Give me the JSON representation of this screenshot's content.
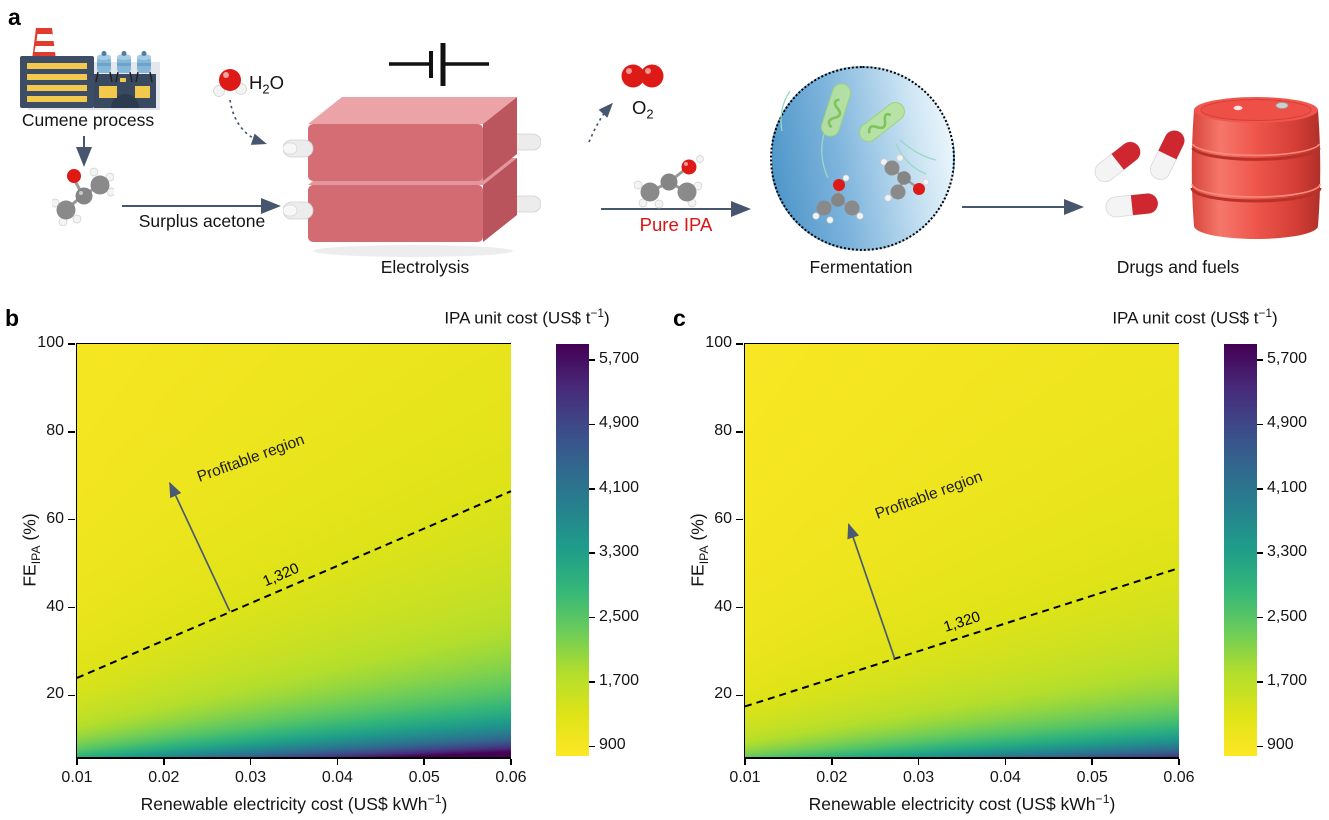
{
  "panel_a": {
    "label": "a",
    "cumene_caption": "Cumene process",
    "surplus_arrow_label": "Surplus acetone",
    "water_formula": {
      "p1": "H",
      "sub": "2",
      "p2": "O"
    },
    "oxygen_formula": {
      "p1": "O",
      "sub": "2"
    },
    "electrolysis_caption": "Electrolysis",
    "pure_ipa_label": "Pure IPA",
    "pure_ipa_color": "#dd1414",
    "fermentation_caption": "Fermentation",
    "products_caption": "Drugs and fuels",
    "arrow_color": "#47566e"
  },
  "chart_data": [
    {
      "panel_label": "b",
      "type": "heatmap",
      "title": {
        "pre": "IPA unit cost (US$ t",
        "sup": "−1",
        "post": ")"
      },
      "xlabel": {
        "pre": "Renewable electricity cost (US$ kWh",
        "sup": "−1",
        "post": ")"
      },
      "ylabel": {
        "pre": "FE",
        "sub": "IPA",
        "post": " (%)"
      },
      "xlim": [
        0.01,
        0.06
      ],
      "ylim": [
        6,
        100
      ],
      "x_ticks": [
        {
          "label": "0.01",
          "value": 0.01
        },
        {
          "label": "0.02",
          "value": 0.02
        },
        {
          "label": "0.03",
          "value": 0.03
        },
        {
          "label": "0.04",
          "value": 0.04
        },
        {
          "label": "0.05",
          "value": 0.05
        },
        {
          "label": "0.06",
          "value": 0.06
        }
      ],
      "y_ticks": [
        {
          "label": "100",
          "value": 100
        },
        {
          "label": "80",
          "value": 80
        },
        {
          "label": "60",
          "value": 60
        },
        {
          "label": "40",
          "value": 40
        },
        {
          "label": "20",
          "value": 20
        }
      ],
      "colormap": "viridis_reversed",
      "colorbar": {
        "value_min": 780,
        "value_max": 5900,
        "ticks": [
          {
            "label": "5,700",
            "value": 5700
          },
          {
            "label": "4,900",
            "value": 4900
          },
          {
            "label": "4,100",
            "value": 4100
          },
          {
            "label": "3,300",
            "value": 3300
          },
          {
            "label": "2,500",
            "value": 2500
          },
          {
            "label": "1,700",
            "value": 1700
          },
          {
            "label": "900",
            "value": 900
          }
        ]
      },
      "cost_model": {
        "base_cost": 767,
        "contour_value": 1320,
        "contour_fe_at_xmin": 24,
        "contour_fe_at_xmax": 66.5
      },
      "contour": {
        "label": "1,320",
        "label_x_frac": 0.47,
        "color": "#000000"
      },
      "annotation": {
        "text": "Profitable region",
        "text_center_frac": [
          0.4,
          0.278
        ],
        "text_angle_deg": -20,
        "arrow_tail_frac": [
          0.352,
          0.647
        ],
        "arrow_head_frac": [
          0.214,
          0.337
        ],
        "color": "#4a5a74"
      }
    },
    {
      "panel_label": "c",
      "type": "heatmap",
      "title": {
        "pre": "IPA unit cost (US$ t",
        "sup": "−1",
        "post": ")"
      },
      "xlabel": {
        "pre": "Renewable electricity cost (US$ kWh",
        "sup": "−1",
        "post": ")"
      },
      "ylabel": {
        "pre": "FE",
        "sub": "IPA",
        "post": " (%)"
      },
      "xlim": [
        0.01,
        0.06
      ],
      "ylim": [
        6,
        100
      ],
      "x_ticks": [
        {
          "label": "0.01",
          "value": 0.01
        },
        {
          "label": "0.02",
          "value": 0.02
        },
        {
          "label": "0.03",
          "value": 0.03
        },
        {
          "label": "0.04",
          "value": 0.04
        },
        {
          "label": "0.05",
          "value": 0.05
        },
        {
          "label": "0.06",
          "value": 0.06
        }
      ],
      "y_ticks": [
        {
          "label": "100",
          "value": 100
        },
        {
          "label": "80",
          "value": 80
        },
        {
          "label": "60",
          "value": 60
        },
        {
          "label": "40",
          "value": 40
        },
        {
          "label": "20",
          "value": 20
        }
      ],
      "colormap": "viridis_reversed",
      "colorbar": {
        "value_min": 780,
        "value_max": 5900,
        "ticks": [
          {
            "label": "5,700",
            "value": 5700
          },
          {
            "label": "4,900",
            "value": 4900
          },
          {
            "label": "4,100",
            "value": 4100
          },
          {
            "label": "3,300",
            "value": 3300
          },
          {
            "label": "2,500",
            "value": 2500
          },
          {
            "label": "1,700",
            "value": 1700
          },
          {
            "label": "900",
            "value": 900
          }
        ]
      },
      "cost_model": {
        "base_cost": 767,
        "contour_value": 1320,
        "contour_fe_at_xmin": 17.5,
        "contour_fe_at_xmax": 49
      },
      "contour": {
        "label": "1,320",
        "label_x_frac": 0.5,
        "color": "#000000"
      },
      "annotation": {
        "text": "Profitable region",
        "text_center_frac": [
          0.423,
          0.369
        ],
        "text_angle_deg": -20,
        "arrow_tail_frac": [
          0.345,
          0.762
        ],
        "arrow_head_frac": [
          0.239,
          0.437
        ],
        "color": "#4a5a74"
      }
    }
  ]
}
